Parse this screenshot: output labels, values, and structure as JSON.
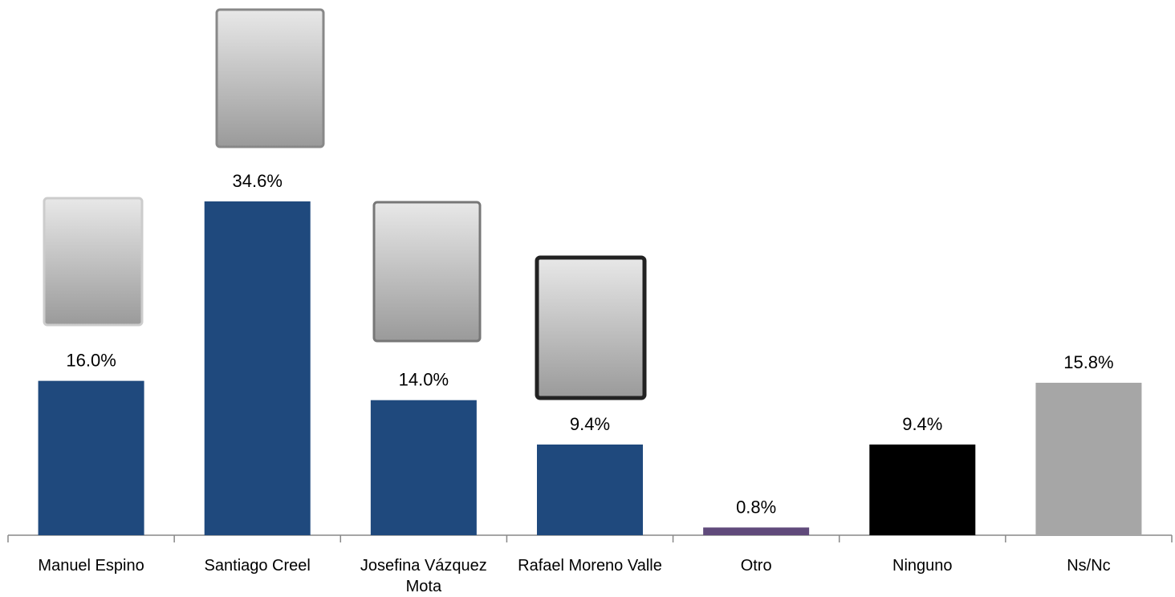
{
  "chart_data": {
    "type": "bar",
    "categories": [
      "Manuel Espino",
      "Santiago Creel",
      "Josefina Vázquez Mota",
      "Rafael Moreno Valle",
      "Otro",
      "Ninguno",
      "Ns/Nc"
    ],
    "values": [
      16.0,
      34.6,
      14.0,
      9.4,
      0.8,
      9.4,
      15.8
    ],
    "value_labels": [
      "16.0%",
      "34.6%",
      "14.0%",
      "9.4%",
      "0.8%",
      "9.4%",
      "15.8%"
    ],
    "colors": [
      "#1f497d",
      "#1f497d",
      "#1f497d",
      "#1f497d",
      "#604a7b",
      "#000000",
      "#a6a6a6"
    ]
  }
}
